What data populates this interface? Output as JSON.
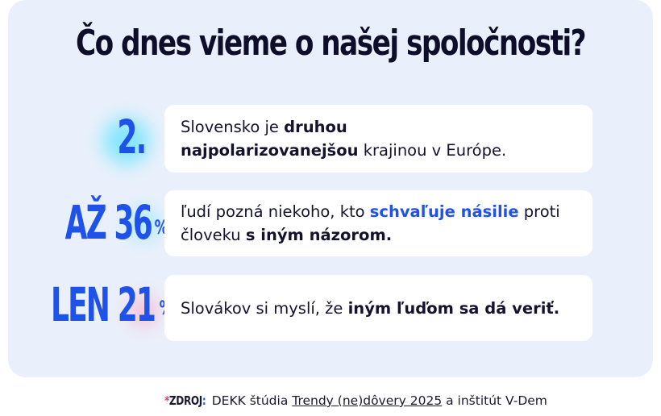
{
  "title": "Čo dnes vieme o našej spoločnosti?",
  "facts": [
    {
      "stat": "2.",
      "pct": "",
      "text_parts": [
        {
          "t": "Slovensko je ",
          "style": "normal"
        },
        {
          "t": "druhou najpolarizovanejšou",
          "style": "bold"
        },
        {
          "t": " krajinou v Európe.",
          "style": "normal"
        }
      ]
    },
    {
      "stat": "AŽ 36",
      "pct": "%",
      "text_parts": [
        {
          "t": "ľudí pozná niekoho, kto ",
          "style": "normal"
        },
        {
          "t": "schvaľuje násilie",
          "style": "blue"
        },
        {
          "t": " proti človeku ",
          "style": "normal"
        },
        {
          "t": "s iným názorom.",
          "style": "bold"
        }
      ]
    },
    {
      "stat": "LEN 21",
      "pct": "%",
      "text_parts": [
        {
          "t": "Slovákov si myslí, že ",
          "style": "normal"
        },
        {
          "t": "iným ľuďom sa dá veriť.",
          "style": "bold"
        }
      ]
    }
  ],
  "source": {
    "star": "*",
    "label": "ZDROJ",
    "colon": ":",
    "prefix": " DEKK štúdia ",
    "link": "Trendy (ne)dôvery 2025",
    "suffix": " a inštitút V-Dem"
  },
  "colors": {
    "accent": "#1f52e8",
    "text": "#14132e",
    "background": "#eaf0fb",
    "glow_cyan": "#5fe3ff",
    "glow_pink": "#ff8fb0"
  }
}
